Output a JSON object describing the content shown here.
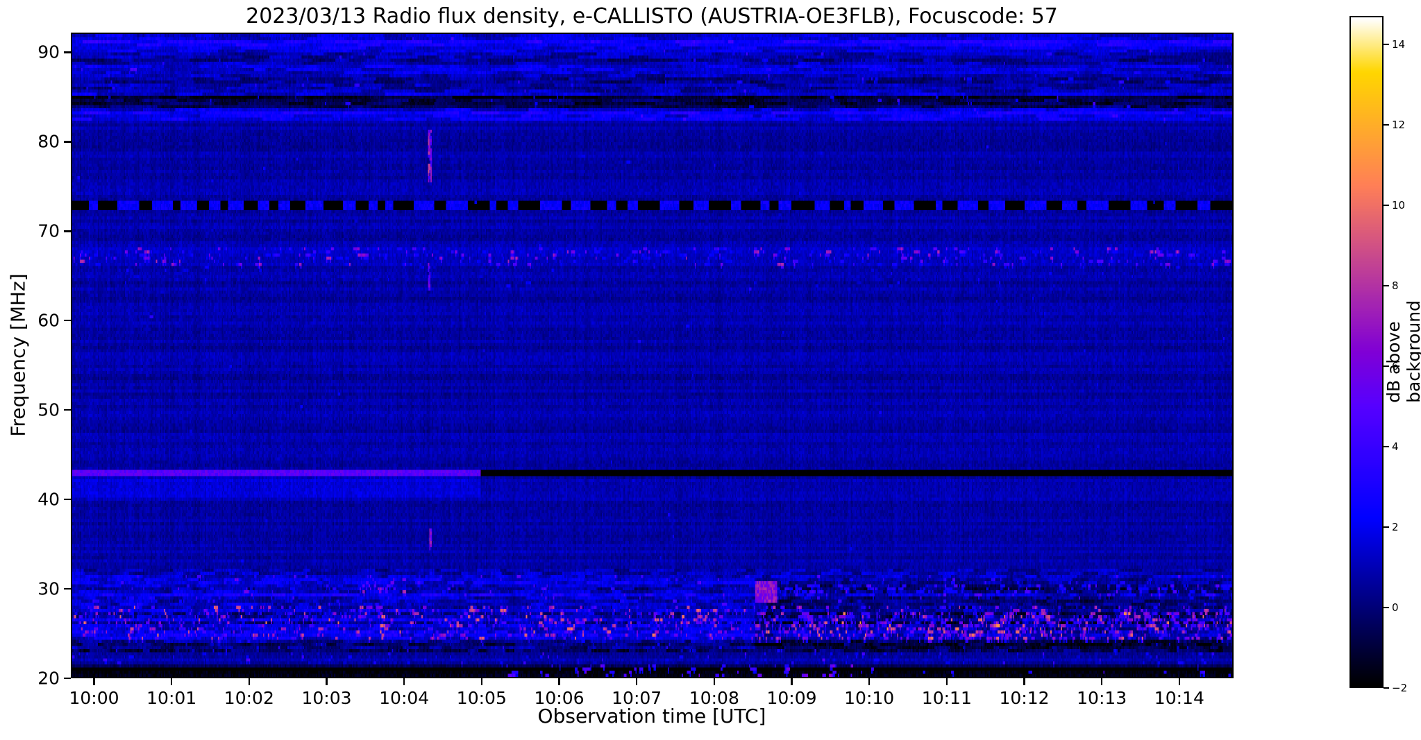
{
  "chart_data": {
    "type": "heatmap",
    "title": "2023/03/13  Radio flux density, e-CALLISTO (AUSTRIA-OE3FLB), Focuscode: 57",
    "xlabel": "Observation time [UTC]",
    "ylabel": "Frequency [MHz]",
    "colorbar_label": "dB above background",
    "colormap": "gnuplot2",
    "x_ticks": [
      "10:00",
      "10:01",
      "10:02",
      "10:03",
      "10:04",
      "10:05",
      "10:06",
      "10:07",
      "10:08",
      "10:09",
      "10:10",
      "10:11",
      "10:12",
      "10:13",
      "10:14"
    ],
    "x_total_seconds": 900,
    "x_first_tick_offset_s": 18,
    "x_tick_interval_s": 60,
    "y_ticks_mhz": [
      20,
      30,
      40,
      50,
      60,
      70,
      80,
      90
    ],
    "y_range_mhz": [
      20,
      92.2
    ],
    "value_range_db": [
      -2,
      14.7
    ],
    "colorbar_ticks": [
      {
        "value": -2,
        "label": "−2"
      },
      {
        "value": 0,
        "label": "0"
      },
      {
        "value": 2,
        "label": "2"
      },
      {
        "value": 4,
        "label": "4"
      },
      {
        "value": 6,
        "label": "6"
      },
      {
        "value": 8,
        "label": "8"
      },
      {
        "value": 10,
        "label": "10"
      },
      {
        "value": 12,
        "label": "12"
      },
      {
        "value": 14,
        "label": "14"
      }
    ],
    "background_db": 0.7,
    "features": [
      {
        "kind": "streak_band",
        "f0": 83.0,
        "f1": 92.2,
        "row_amp": 0.85,
        "seg_amp": 0.9,
        "seg_len_s": 16,
        "db_offset": 0.25
      },
      {
        "kind": "row_offset",
        "f0": 90.6,
        "f1": 91.9,
        "db": 1.1
      },
      {
        "kind": "row_offset",
        "f0": 89.2,
        "f1": 89.7,
        "db": 0.6
      },
      {
        "kind": "row_offset",
        "f0": 84.2,
        "f1": 85.2,
        "db": -1.5
      },
      {
        "kind": "row_offset",
        "f0": 86.6,
        "f1": 87.2,
        "db": -0.7
      },
      {
        "kind": "row_offset",
        "f0": 83.0,
        "f1": 83.6,
        "db": 0.9
      },
      {
        "kind": "speckles",
        "f0": 83.0,
        "f1": 92.0,
        "t0": 0,
        "t1": 900,
        "density": 0.012,
        "db_min": 2.5,
        "db_max": 5,
        "len_s_max": 5
      },
      {
        "kind": "dashed_line",
        "f": 73.0,
        "h": 0.7,
        "t0": 0,
        "t1": 900,
        "seg_len_s": 11,
        "db_on": 1.7,
        "db_off": -2.6
      },
      {
        "kind": "row_offset",
        "f0": 66.4,
        "f1": 68.4,
        "db": 0.4
      },
      {
        "kind": "speckles",
        "f0": 66.4,
        "f1": 68.4,
        "t0": 0,
        "t1": 900,
        "density": 0.16,
        "db_min": 2,
        "db_max": 8.5,
        "len_s_max": 6
      },
      {
        "kind": "speckles",
        "f0": 63.9,
        "f1": 66.2,
        "t0": 0,
        "t1": 900,
        "density": 0.02,
        "db_min": 1.5,
        "db_max": 3.5,
        "len_s_max": 4
      },
      {
        "kind": "region",
        "f0": 40.6,
        "f1": 43.0,
        "t0": 0,
        "t1": 317,
        "db": 0.7
      },
      {
        "kind": "line_switch",
        "f": 43.2,
        "h": 0.45,
        "t_switch": 317,
        "db_before": 4.8,
        "db_after": -2.4
      },
      {
        "kind": "vburst",
        "t": 276,
        "w_s": 2.5,
        "f0": 75.6,
        "f1": 81.4,
        "db_min": 4,
        "db_max": 9
      },
      {
        "kind": "vburst",
        "t": 276,
        "w_s": 2.0,
        "f0": 63.6,
        "f1": 66.6,
        "db_min": 3,
        "db_max": 7
      },
      {
        "kind": "vburst",
        "t": 277,
        "w_s": 2.0,
        "f0": 34.6,
        "f1": 36.8,
        "db_min": 4,
        "db_max": 8
      },
      {
        "kind": "streak_band",
        "f0": 23.0,
        "f1": 32.0,
        "row_amp": 0.75,
        "seg_amp": 1.0,
        "seg_len_s": 9,
        "db_offset": 0.5
      },
      {
        "kind": "speckles",
        "f0": 24.4,
        "f1": 27.9,
        "t0": 0,
        "t1": 900,
        "density": 0.3,
        "db_min": 2,
        "db_max": 11,
        "len_s_max": 5
      },
      {
        "kind": "speckles",
        "f0": 28.0,
        "f1": 31.6,
        "t0": 0,
        "t1": 900,
        "density": 0.1,
        "db_min": 1.5,
        "db_max": 6,
        "len_s_max": 5
      },
      {
        "kind": "speckles",
        "f0": 21.8,
        "f1": 24.3,
        "t0": 0,
        "t1": 900,
        "density": 0.06,
        "db_min": 1.5,
        "db_max": 5,
        "len_s_max": 4
      },
      {
        "kind": "row_offset",
        "f0": 23.2,
        "f1": 24.1,
        "db": -0.9
      },
      {
        "kind": "row_offset",
        "f0": 27.9,
        "f1": 28.6,
        "db": -0.8
      },
      {
        "kind": "region",
        "f0": 23.4,
        "f1": 31.2,
        "t0": 530,
        "t1": 900,
        "db": -1.1
      },
      {
        "kind": "speckles",
        "f0": 24.6,
        "f1": 27.2,
        "t0": 530,
        "t1": 900,
        "density": 0.22,
        "db_min": 4,
        "db_max": 12,
        "len_s_max": 6
      },
      {
        "kind": "speckles",
        "f0": 29.3,
        "f1": 30.5,
        "t0": 530,
        "t1": 900,
        "density": 0.18,
        "db_min": 2.5,
        "db_max": 6,
        "len_s_max": 8
      },
      {
        "kind": "blob",
        "t0": 530,
        "t1": 546,
        "f0": 28.8,
        "f1": 30.6,
        "db_min": 5,
        "db_max": 8
      },
      {
        "kind": "speckles",
        "f0": 29.8,
        "f1": 31.2,
        "t0": 225,
        "t1": 258,
        "density": 0.25,
        "db_min": 5,
        "db_max": 9,
        "len_s_max": 4
      },
      {
        "kind": "region",
        "f0": 20.0,
        "f1": 20.9,
        "t0": 0,
        "t1": 900,
        "db": -2.6
      },
      {
        "kind": "region",
        "f0": 20.9,
        "f1": 21.5,
        "t0": 0,
        "t1": 900,
        "db": -1.2
      },
      {
        "kind": "speckles",
        "f0": 20.3,
        "f1": 21.3,
        "t0": 335,
        "t1": 615,
        "density": 0.1,
        "db_min": 3.5,
        "db_max": 7,
        "len_s_max": 6
      },
      {
        "kind": "speckles",
        "f0": 20.3,
        "f1": 21.2,
        "t0": 615,
        "t1": 900,
        "density": 0.02,
        "db_min": 3,
        "db_max": 6,
        "len_s_max": 5
      },
      {
        "kind": "speckles",
        "f0": 21.5,
        "f1": 92.0,
        "t0": 0,
        "t1": 900,
        "density": 0.002,
        "db_min": 1.5,
        "db_max": 3.2,
        "len_s_max": 3
      },
      {
        "kind": "point",
        "t": 60,
        "f": 60.7,
        "db": 3.5,
        "len_s": 3
      }
    ]
  }
}
